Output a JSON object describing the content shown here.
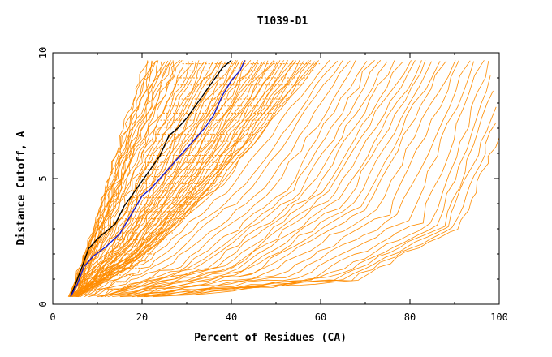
{
  "chart_data": {
    "type": "line",
    "title": "T1039-D1",
    "xlabel": "Percent of Residues (CA)",
    "ylabel": "Distance Cutoff, A",
    "xlim": [
      0,
      100
    ],
    "ylim": [
      0,
      10
    ],
    "x_ticks": [
      "0",
      "20",
      "40",
      "60",
      "80",
      "100"
    ],
    "y_ticks": [
      "0",
      "5",
      "10"
    ],
    "grid": false,
    "legend": "none",
    "colors": {
      "highlight_black": "#000000",
      "highlight_blue": "#1a1acc",
      "others": "#ff8c00"
    },
    "highlight_series": [
      {
        "color": "#000000",
        "x": [
          4,
          5.5,
          7,
          8,
          10,
          12,
          14,
          16,
          18,
          20,
          22,
          24,
          26,
          28,
          30,
          32,
          34,
          36,
          38,
          40
        ],
        "y": [
          0.3,
          1.0,
          1.7,
          2.2,
          2.6,
          2.9,
          3.2,
          3.9,
          4.4,
          4.9,
          5.4,
          5.9,
          6.7,
          7.0,
          7.4,
          7.9,
          8.4,
          8.9,
          9.4,
          9.7
        ]
      },
      {
        "color": "#1a1acc",
        "x": [
          4,
          5.5,
          7,
          9,
          12,
          15,
          17,
          20,
          22,
          24,
          26,
          28,
          30,
          32,
          34,
          36,
          38,
          40,
          42,
          43
        ],
        "y": [
          0.3,
          0.8,
          1.5,
          1.9,
          2.3,
          2.8,
          3.4,
          4.3,
          4.6,
          5.0,
          5.4,
          5.8,
          6.2,
          6.6,
          7.0,
          7.5,
          8.3,
          8.9,
          9.3,
          9.7
        ]
      }
    ],
    "background_series_description": [
      {
        "x": [
          4,
          10,
          16,
          21
        ],
        "y": [
          0.3,
          3.5,
          7.0,
          9.7
        ]
      },
      {
        "x": [
          4,
          12,
          20,
          28
        ],
        "y": [
          0.3,
          3.2,
          6.5,
          9.7
        ]
      },
      {
        "x": [
          5,
          16,
          26,
          40
        ],
        "y": [
          0.3,
          2.5,
          5.5,
          9.7
        ]
      },
      {
        "x": [
          5,
          18,
          32,
          50
        ],
        "y": [
          0.3,
          2.0,
          5.0,
          9.7
        ]
      },
      {
        "x": [
          6,
          20,
          38,
          60
        ],
        "y": [
          0.3,
          1.8,
          4.8,
          9.7
        ]
      },
      {
        "x": [
          10,
          30,
          52,
          70
        ],
        "y": [
          0.3,
          1.5,
          4.5,
          9.7
        ]
      },
      {
        "x": [
          12,
          40,
          62,
          80
        ],
        "y": [
          0.3,
          1.5,
          4.5,
          9.7
        ]
      },
      {
        "x": [
          15,
          45,
          70,
          88
        ],
        "y": [
          0.3,
          1.2,
          3.8,
          9.7
        ]
      },
      {
        "x": [
          20,
          60,
          85,
          98
        ],
        "y": [
          0.3,
          1.0,
          3.2,
          9.7
        ]
      },
      {
        "x": [
          24,
          70,
          92,
          100
        ],
        "y": [
          0.3,
          1.0,
          3.0,
          6.0
        ]
      }
    ]
  }
}
